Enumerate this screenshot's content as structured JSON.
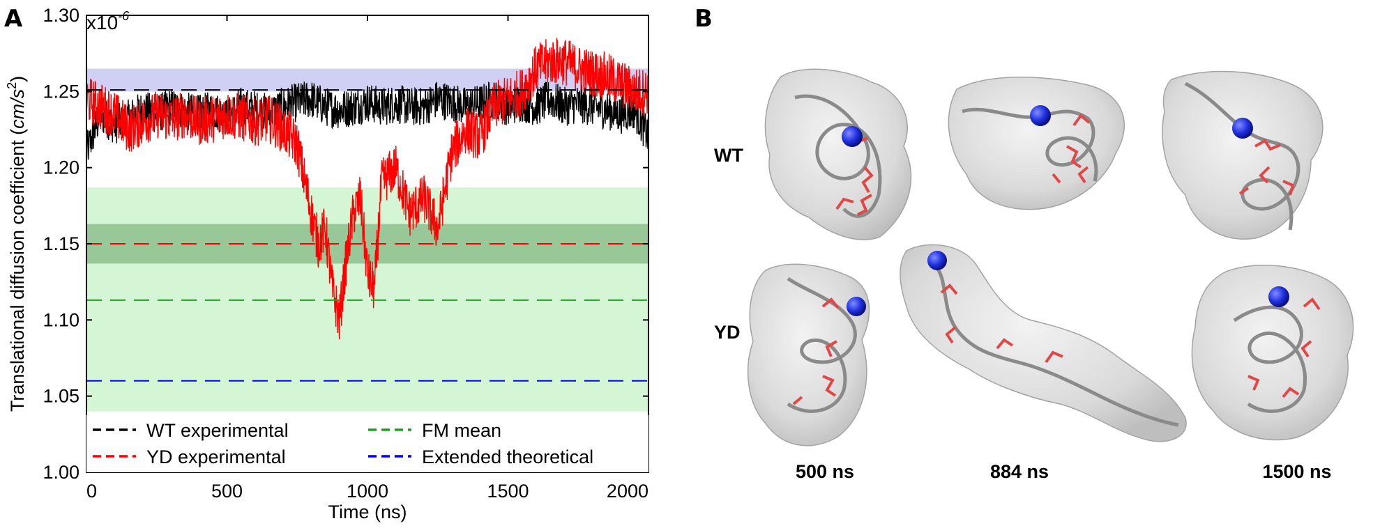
{
  "panels": {
    "a_label": "A",
    "b_label": "B"
  },
  "chart_data": {
    "type": "line",
    "xlabel": "Time (ns)",
    "ylabel_text": "Translational diffusion coefficient (",
    "ylabel_units": "cm/s",
    "ylabel_exp": "2",
    "ylabel_close": ")",
    "scale_base": "x10",
    "scale_exp": "-6",
    "xlim": [
      0,
      2000
    ],
    "ylim": [
      1.0,
      1.3
    ],
    "x_ticks": [
      0,
      500,
      1000,
      1500,
      2000
    ],
    "x_tick_labels": [
      "0",
      "500",
      "1000",
      "1500",
      "2000"
    ],
    "y_ticks": [
      1.0,
      1.05,
      1.1,
      1.15,
      1.2,
      1.25,
      1.3
    ],
    "y_tick_labels": [
      "1.00",
      "1.05",
      "1.10",
      "1.15",
      "1.20",
      "1.25",
      "1.30"
    ],
    "bands": [
      {
        "name": "FM range",
        "y0": 1.04,
        "y1": 1.187,
        "color": "#ccf5cc"
      },
      {
        "name": "YD experimental error",
        "y0": 1.137,
        "y1": 1.163,
        "color": "#8dbf8d"
      },
      {
        "name": "WT experimental error",
        "y0": 1.25,
        "y1": 1.265,
        "color": "#c8c8f2"
      }
    ],
    "reference_lines": [
      {
        "name": "WT experimental",
        "y": 1.251,
        "color": "#000000"
      },
      {
        "name": "YD experimental",
        "y": 1.15,
        "color": "#ff0000"
      },
      {
        "name": "FM mean",
        "y": 1.113,
        "color": "#20a020"
      },
      {
        "name": "Extended theoretical",
        "y": 1.06,
        "color": "#0000ff"
      }
    ],
    "series": [
      {
        "name": "WT",
        "color": "#000000",
        "x": [
          0,
          50,
          100,
          150,
          200,
          250,
          300,
          350,
          400,
          450,
          500,
          550,
          600,
          650,
          700,
          750,
          800,
          850,
          900,
          950,
          1000,
          1050,
          1100,
          1150,
          1200,
          1250,
          1300,
          1350,
          1400,
          1450,
          1500,
          1550,
          1600,
          1650,
          1700,
          1750,
          1800,
          1850,
          1900,
          1950,
          2000
        ],
        "values": [
          1.21,
          1.235,
          1.228,
          1.232,
          1.238,
          1.235,
          1.24,
          1.237,
          1.235,
          1.238,
          1.233,
          1.24,
          1.238,
          1.236,
          1.24,
          1.243,
          1.245,
          1.24,
          1.238,
          1.24,
          1.243,
          1.24,
          1.242,
          1.24,
          1.24,
          1.245,
          1.243,
          1.24,
          1.242,
          1.245,
          1.24,
          1.243,
          1.24,
          1.245,
          1.24,
          1.242,
          1.24,
          1.238,
          1.235,
          1.238,
          1.22
        ],
        "noise": 0.013
      },
      {
        "name": "YD",
        "color": "#ff0000",
        "x": [
          0,
          50,
          100,
          150,
          200,
          250,
          300,
          350,
          400,
          450,
          500,
          550,
          600,
          650,
          700,
          750,
          800,
          825,
          850,
          875,
          900,
          925,
          950,
          975,
          1000,
          1025,
          1050,
          1100,
          1150,
          1200,
          1250,
          1300,
          1350,
          1400,
          1450,
          1500,
          1550,
          1600,
          1650,
          1700,
          1750,
          1800,
          1850,
          1900,
          1950,
          2000
        ],
        "values": [
          1.245,
          1.24,
          1.235,
          1.225,
          1.23,
          1.235,
          1.232,
          1.235,
          1.23,
          1.232,
          1.235,
          1.233,
          1.23,
          1.232,
          1.225,
          1.215,
          1.17,
          1.15,
          1.16,
          1.12,
          1.1,
          1.14,
          1.17,
          1.18,
          1.13,
          1.12,
          1.19,
          1.2,
          1.17,
          1.18,
          1.16,
          1.21,
          1.225,
          1.22,
          1.24,
          1.245,
          1.25,
          1.265,
          1.27,
          1.27,
          1.265,
          1.262,
          1.26,
          1.255,
          1.25,
          1.25
        ],
        "noise": 0.016
      }
    ],
    "legend": [
      {
        "label": "WT experimental",
        "color": "#000000"
      },
      {
        "label": "YD experimental",
        "color": "#ff0000"
      },
      {
        "label": "FM mean",
        "color": "#20a020"
      },
      {
        "label": "Extended theoretical",
        "color": "#0000ff"
      }
    ]
  },
  "panel_b": {
    "row_labels": [
      "WT",
      "YD"
    ],
    "time_labels": [
      "500 ns",
      "884 ns",
      "1500 ns"
    ],
    "colors": {
      "surface": "#d4d4d4",
      "ribbon": "#8a8a8a",
      "residues": "#e04848",
      "ion": "#2030e0"
    }
  }
}
